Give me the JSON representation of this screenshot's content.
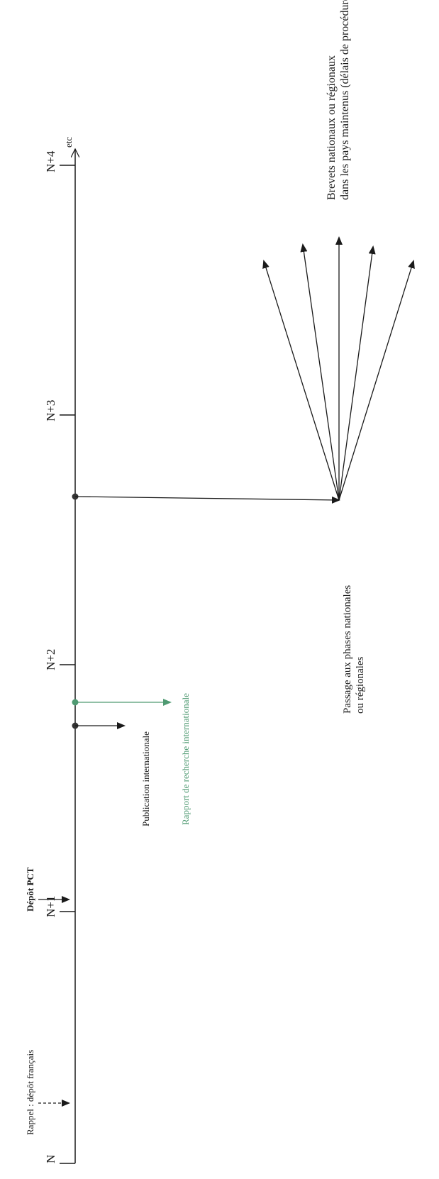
{
  "timeline": {
    "ticks": [
      {
        "label": "N"
      },
      {
        "label": "N+1"
      },
      {
        "label": "N+2"
      },
      {
        "label": "N+3"
      },
      {
        "label": "N+4"
      }
    ],
    "end_label": "etc"
  },
  "events": {
    "rappel": "Rappel : dépôt français",
    "depot_pct": "Dépôt PCT",
    "publication": "Publication internationale",
    "rapport": "Rapport de recherche internationale",
    "passage_line1": "Passage aux phases nationales",
    "passage_line2": "ou régionales",
    "brevets_line1": "Brevets nationaux ou régionaux",
    "brevets_line2": "dans les pays maintenus (délais de procédure variables)"
  },
  "colors": {
    "line": "#1a1a1a",
    "green": "#4f9a72"
  }
}
